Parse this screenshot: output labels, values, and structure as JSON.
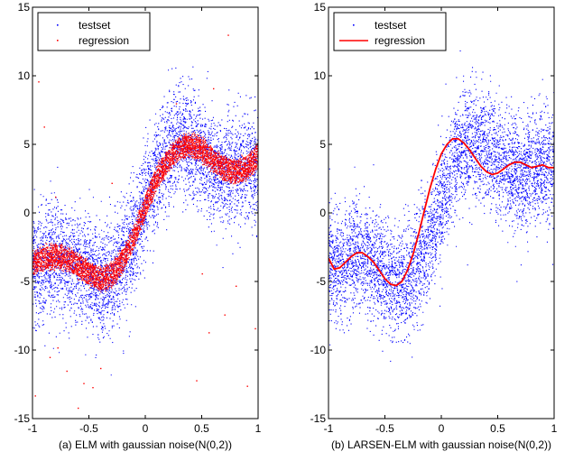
{
  "figure": {
    "background": "#ffffff"
  },
  "chart_data": [
    {
      "type": "scatter",
      "caption": "(a) ELM with gaussian noise(N(0,2))",
      "xlim": [
        -1,
        1
      ],
      "ylim": [
        -15,
        15
      ],
      "x_ticks": [
        -1,
        -0.5,
        0,
        0.5,
        1
      ],
      "x_tick_labels": [
        "-1",
        "-0.5",
        "0",
        "0.5",
        "1"
      ],
      "y_ticks": [
        -15,
        -10,
        -5,
        0,
        5,
        10,
        15
      ],
      "y_tick_labels": [
        "-15",
        "-10",
        "-5",
        "0",
        "5",
        "10",
        "15"
      ],
      "grid": false,
      "legend_position": "top-left",
      "series": [
        {
          "name": "testset",
          "color": "#0000ff",
          "marker": "point",
          "underlying_curve": {
            "x": [
              -1,
              -0.9,
              -0.8,
              -0.7,
              -0.6,
              -0.5,
              -0.4,
              -0.3,
              -0.2,
              -0.1,
              0,
              0.1,
              0.2,
              0.3,
              0.4,
              0.5,
              0.6,
              0.7,
              0.8,
              0.9,
              1
            ],
            "y": [
              -3.8,
              -3.6,
              -3.2,
              -3.3,
              -3.9,
              -4.6,
              -5.0,
              -4.7,
              -3.5,
              -1.6,
              0.8,
              3.0,
              4.6,
              5.3,
              5.0,
              4.2,
              3.3,
              3.0,
              3.3,
              3.6,
              3.2
            ]
          },
          "noise_sd": 2,
          "n_points_approx": 5000
        },
        {
          "name": "regression",
          "color": "#ff0000",
          "marker": "point",
          "underlying_curve": {
            "x": [
              -1,
              -0.9,
              -0.8,
              -0.7,
              -0.6,
              -0.5,
              -0.4,
              -0.3,
              -0.2,
              -0.1,
              0,
              0.1,
              0.2,
              0.3,
              0.4,
              0.5,
              0.6,
              0.7,
              0.8,
              0.9,
              1
            ],
            "y": [
              -3.6,
              -3.3,
              -3.1,
              -3.3,
              -3.8,
              -4.4,
              -4.8,
              -4.5,
              -3.4,
              -1.6,
              0.6,
              2.6,
              3.9,
              4.8,
              5.0,
              4.6,
              3.9,
              3.2,
              3.0,
              3.4,
              4.2
            ]
          },
          "band_halfwidth": 0.8,
          "n_points_approx": 5000,
          "outliers": [
            [
              -0.95,
              9.6
            ],
            [
              -0.9,
              6.3
            ],
            [
              -0.85,
              -10.5
            ],
            [
              -0.8,
              1.2
            ],
            [
              -0.78,
              -9.8
            ],
            [
              -0.7,
              -11.5
            ],
            [
              -0.6,
              -14.2
            ],
            [
              -0.55,
              -12.4
            ],
            [
              -0.47,
              -12.7
            ],
            [
              -0.4,
              -11.3
            ],
            [
              -0.3,
              2.2
            ],
            [
              0.27,
              8.0
            ],
            [
              0.45,
              -12.2
            ],
            [
              0.5,
              -4.4
            ],
            [
              0.56,
              -8.7
            ],
            [
              0.7,
              -7.4
            ],
            [
              0.73,
              13.0
            ],
            [
              0.8,
              -5.3
            ],
            [
              0.9,
              -12.6
            ],
            [
              0.97,
              -8.4
            ],
            [
              0.6,
              9.1
            ],
            [
              -0.98,
              -13.3
            ]
          ]
        }
      ]
    },
    {
      "type": "scatter",
      "caption": "(b) LARSEN-ELM with gaussian noise(N(0,2))",
      "xlim": [
        -1,
        1
      ],
      "ylim": [
        -15,
        15
      ],
      "x_ticks": [
        -1,
        -0.5,
        0,
        0.5,
        1
      ],
      "x_tick_labels": [
        "-1",
        "-0.5",
        "0",
        "0.5",
        "1"
      ],
      "y_ticks": [
        -15,
        -10,
        -5,
        0,
        5,
        10,
        15
      ],
      "y_tick_labels": [
        "-15",
        "-10",
        "-5",
        "0",
        "5",
        "10",
        "15"
      ],
      "grid": false,
      "legend_position": "top-left",
      "series": [
        {
          "name": "testset",
          "color": "#0000ff",
          "marker": "point",
          "underlying_curve": {
            "x": [
              -1,
              -0.9,
              -0.8,
              -0.7,
              -0.6,
              -0.5,
              -0.4,
              -0.3,
              -0.2,
              -0.1,
              0,
              0.1,
              0.2,
              0.3,
              0.4,
              0.5,
              0.6,
              0.7,
              0.8,
              0.9,
              1
            ],
            "y": [
              -3.8,
              -3.8,
              -3.3,
              -3.0,
              -3.6,
              -4.5,
              -5.1,
              -4.9,
              -3.6,
              -1.5,
              1.0,
              3.4,
              5.0,
              5.4,
              4.8,
              3.9,
              3.1,
              2.9,
              3.3,
              3.7,
              3.3
            ]
          },
          "noise_sd": 2,
          "n_points_approx": 5000
        },
        {
          "name": "regression",
          "color": "#ff0000",
          "marker": "line",
          "x": [
            -1,
            -0.95,
            -0.9,
            -0.85,
            -0.8,
            -0.75,
            -0.7,
            -0.65,
            -0.6,
            -0.55,
            -0.5,
            -0.45,
            -0.4,
            -0.35,
            -0.3,
            -0.25,
            -0.2,
            -0.15,
            -0.1,
            -0.05,
            0,
            0.05,
            0.1,
            0.15,
            0.2,
            0.25,
            0.3,
            0.35,
            0.4,
            0.45,
            0.5,
            0.55,
            0.6,
            0.65,
            0.7,
            0.75,
            0.8,
            0.85,
            0.9,
            0.95,
            1
          ],
          "y": [
            -3.3,
            -4.1,
            -4.0,
            -3.6,
            -3.2,
            -2.9,
            -2.9,
            -3.2,
            -3.6,
            -4.2,
            -4.8,
            -5.2,
            -5.3,
            -5.0,
            -4.2,
            -3.0,
            -1.5,
            0.2,
            1.8,
            3.2,
            4.3,
            5.0,
            5.4,
            5.4,
            5.1,
            4.6,
            4.0,
            3.4,
            3.0,
            2.8,
            2.9,
            3.2,
            3.5,
            3.7,
            3.7,
            3.5,
            3.3,
            3.4,
            3.5,
            3.3,
            3.3
          ]
        }
      ]
    }
  ]
}
